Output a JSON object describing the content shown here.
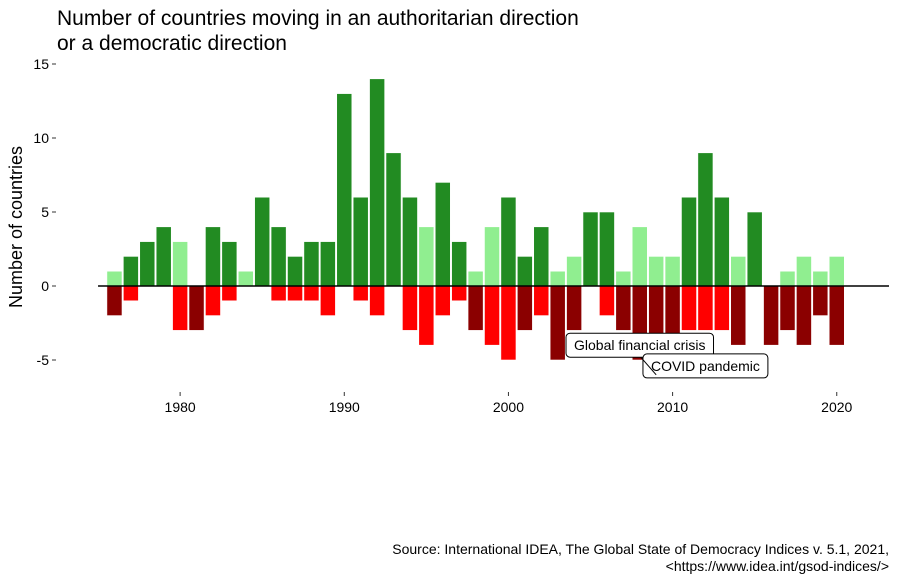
{
  "chart_data": {
    "type": "bar",
    "title_lines": [
      "Number of countries moving in an authoritarian direction",
      "or a democratic direction"
    ],
    "xlabel": "",
    "ylabel": "Number of countries",
    "xlim": [
      1972.5,
      2023
    ],
    "ylim": [
      -6,
      15
    ],
    "x_ticks": [
      1980,
      1990,
      2000,
      2010,
      2020
    ],
    "y_ticks": [
      {
        "value": 15,
        "label": "15"
      },
      {
        "value": 10,
        "label": "10"
      },
      {
        "value": 5,
        "label": "5"
      },
      {
        "value": 0,
        "label": "0"
      },
      {
        "value": -5,
        "label": "-5"
      }
    ],
    "grid": false,
    "x": [
      1976,
      1977,
      1978,
      1979,
      1980,
      1981,
      1982,
      1983,
      1984,
      1985,
      1986,
      1987,
      1988,
      1989,
      1990,
      1991,
      1992,
      1993,
      1994,
      1995,
      1996,
      1997,
      1998,
      1999,
      2000,
      2001,
      2002,
      2003,
      2004,
      2005,
      2006,
      2007,
      2008,
      2009,
      2010,
      2011,
      2012,
      2013,
      2014,
      2015,
      2016,
      2017,
      2018,
      2019,
      2020
    ],
    "positive_values": [
      1,
      2,
      3,
      4,
      3,
      0,
      4,
      3,
      1,
      6,
      4,
      2,
      3,
      3,
      13,
      6,
      14,
      9,
      6,
      4,
      7,
      3,
      1,
      4,
      6,
      2,
      4,
      1,
      2,
      5,
      5,
      1,
      4,
      2,
      2,
      6,
      9,
      6,
      2,
      5,
      0,
      1,
      2,
      1,
      2
    ],
    "positive_colors": [
      "#90ee90",
      "#228b22",
      "#228b22",
      "#228b22",
      "#90ee90",
      "#228b22",
      "#228b22",
      "#228b22",
      "#90ee90",
      "#228b22",
      "#228b22",
      "#228b22",
      "#228b22",
      "#228b22",
      "#228b22",
      "#228b22",
      "#228b22",
      "#228b22",
      "#228b22",
      "#90ee90",
      "#228b22",
      "#228b22",
      "#90ee90",
      "#90ee90",
      "#228b22",
      "#228b22",
      "#228b22",
      "#90ee90",
      "#90ee90",
      "#228b22",
      "#228b22",
      "#90ee90",
      "#90ee90",
      "#90ee90",
      "#90ee90",
      "#228b22",
      "#228b22",
      "#228b22",
      "#90ee90",
      "#228b22",
      "#228b22",
      "#90ee90",
      "#90ee90",
      "#90ee90",
      "#90ee90"
    ],
    "negative_values": [
      -2,
      -1,
      0,
      0,
      -3,
      -3,
      -2,
      -1,
      0,
      0,
      -1,
      -1,
      -1,
      -2,
      0,
      -1,
      -2,
      0,
      -3,
      -4,
      -2,
      -1,
      -3,
      -4,
      -5,
      -3,
      -2,
      -5,
      -3,
      0,
      -2,
      -3,
      -5,
      -6,
      -5,
      -3,
      -3,
      -3,
      -4,
      0,
      -4,
      -3,
      -4,
      -2,
      -4
    ],
    "negative_colors": [
      "#8b0000",
      "#ff0000",
      "#ff0000",
      "#ff0000",
      "#ff0000",
      "#8b0000",
      "#ff0000",
      "#ff0000",
      "#ff0000",
      "#ff0000",
      "#ff0000",
      "#ff0000",
      "#ff0000",
      "#ff0000",
      "#ff0000",
      "#ff0000",
      "#ff0000",
      "#ff0000",
      "#ff0000",
      "#ff0000",
      "#ff0000",
      "#ff0000",
      "#8b0000",
      "#ff0000",
      "#ff0000",
      "#8b0000",
      "#ff0000",
      "#8b0000",
      "#8b0000",
      "#8b0000",
      "#ff0000",
      "#8b0000",
      "#8b0000",
      "#8b0000",
      "#8b0000",
      "#ff0000",
      "#ff0000",
      "#ff0000",
      "#8b0000",
      "#8b0000",
      "#8b0000",
      "#8b0000",
      "#8b0000",
      "#8b0000",
      "#8b0000"
    ],
    "annotations": [
      {
        "text": "Global financial crisis",
        "x": 2008,
        "y": -4
      },
      {
        "text": "COVID pandemic",
        "x": 2012,
        "y": -5.4
      }
    ],
    "caption_lines": [
      "Source: International IDEA, The Global State of Democracy Indices v. 5.1, 2021,",
      "<https://www.idea.int/gsod-indices/>"
    ]
  }
}
